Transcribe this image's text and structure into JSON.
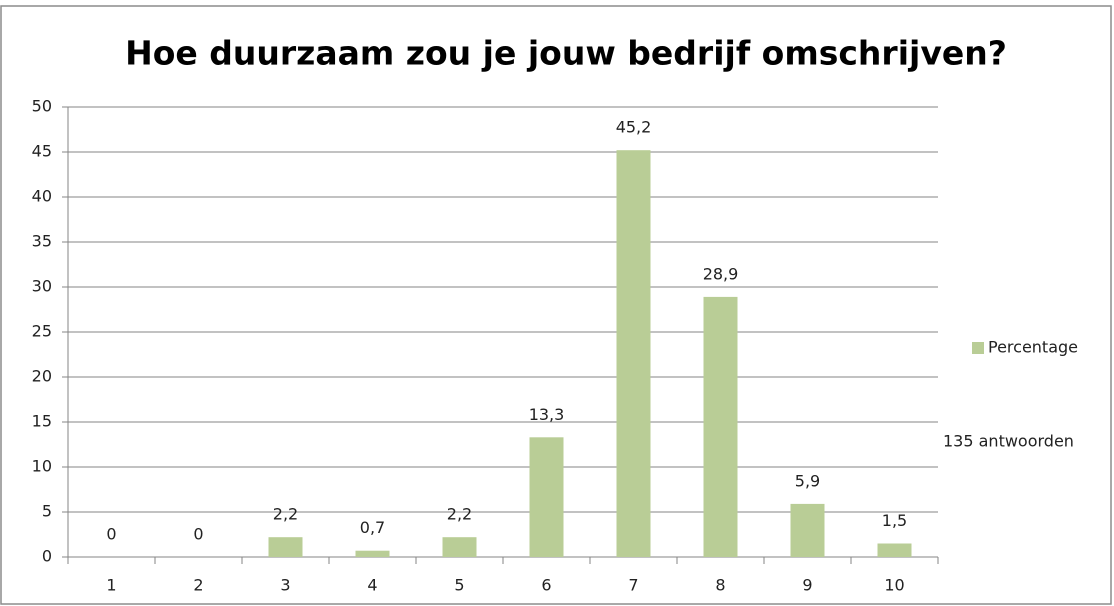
{
  "chart_data": {
    "type": "bar",
    "title": "Hoe duurzaam zou je jouw bedrijf omschrijven?",
    "categories": [
      "1",
      "2",
      "3",
      "4",
      "5",
      "6",
      "7",
      "8",
      "9",
      "10"
    ],
    "series": [
      {
        "name": "Percentage",
        "color": "#b9cd96",
        "values": [
          0,
          0,
          2.2,
          0.7,
          2.2,
          13.3,
          45.2,
          28.9,
          5.9,
          1.5
        ],
        "value_labels": [
          "0",
          "0",
          "2,2",
          "0,7",
          "2,2",
          "13,3",
          "45,2",
          "28,9",
          "5,9",
          "1,5"
        ]
      }
    ],
    "annotation": "135 antwoorden",
    "ylim": [
      0,
      50
    ],
    "yticks": [
      0,
      5,
      10,
      15,
      20,
      25,
      30,
      35,
      40,
      45,
      50
    ],
    "grid": true,
    "legend": "right"
  }
}
